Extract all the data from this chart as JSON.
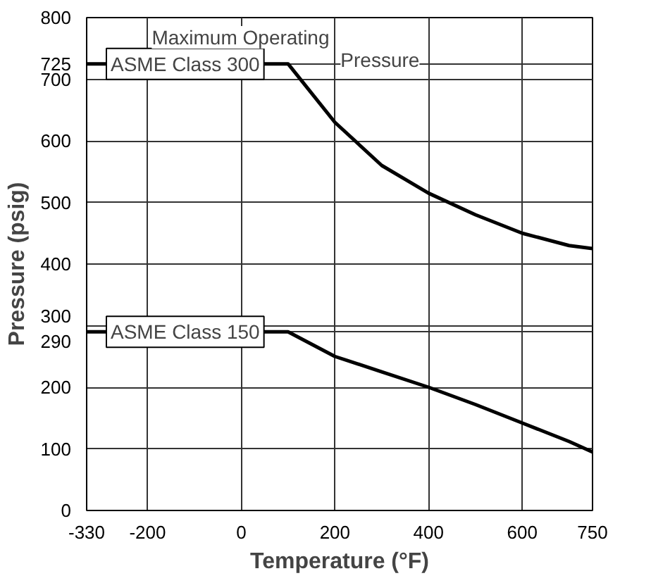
{
  "chart_data": {
    "type": "line",
    "xlabel": "Temperature (°F)",
    "ylabel": "Pressure (psig)",
    "annotations": [
      "Maximum Operating Pressure"
    ],
    "series": [
      {
        "name": "ASME Class 300",
        "color": "#000000",
        "x": [
          -330,
          100,
          200,
          300,
          400,
          500,
          600,
          700,
          750
        ],
        "values": [
          725,
          725,
          630,
          560,
          515,
          480,
          450,
          430,
          425
        ]
      },
      {
        "name": "ASME Class 150",
        "color": "#000000",
        "x": [
          -330,
          100,
          200,
          300,
          400,
          500,
          600,
          700,
          750
        ],
        "values": [
          290,
          290,
          250,
          225,
          200,
          172,
          142,
          112,
          95
        ]
      }
    ],
    "xlim": [
      -330,
      750
    ],
    "ylim": [
      0,
      800
    ],
    "xticks": [
      -330,
      -200,
      0,
      200,
      400,
      600,
      750
    ],
    "yticks": [
      0,
      100,
      200,
      {
        "value": 290,
        "label": "290"
      },
      300,
      400,
      500,
      600,
      700,
      {
        "value": 725,
        "label": "725"
      },
      800
    ],
    "grid": true,
    "marker": "none",
    "line_style": "solid"
  }
}
